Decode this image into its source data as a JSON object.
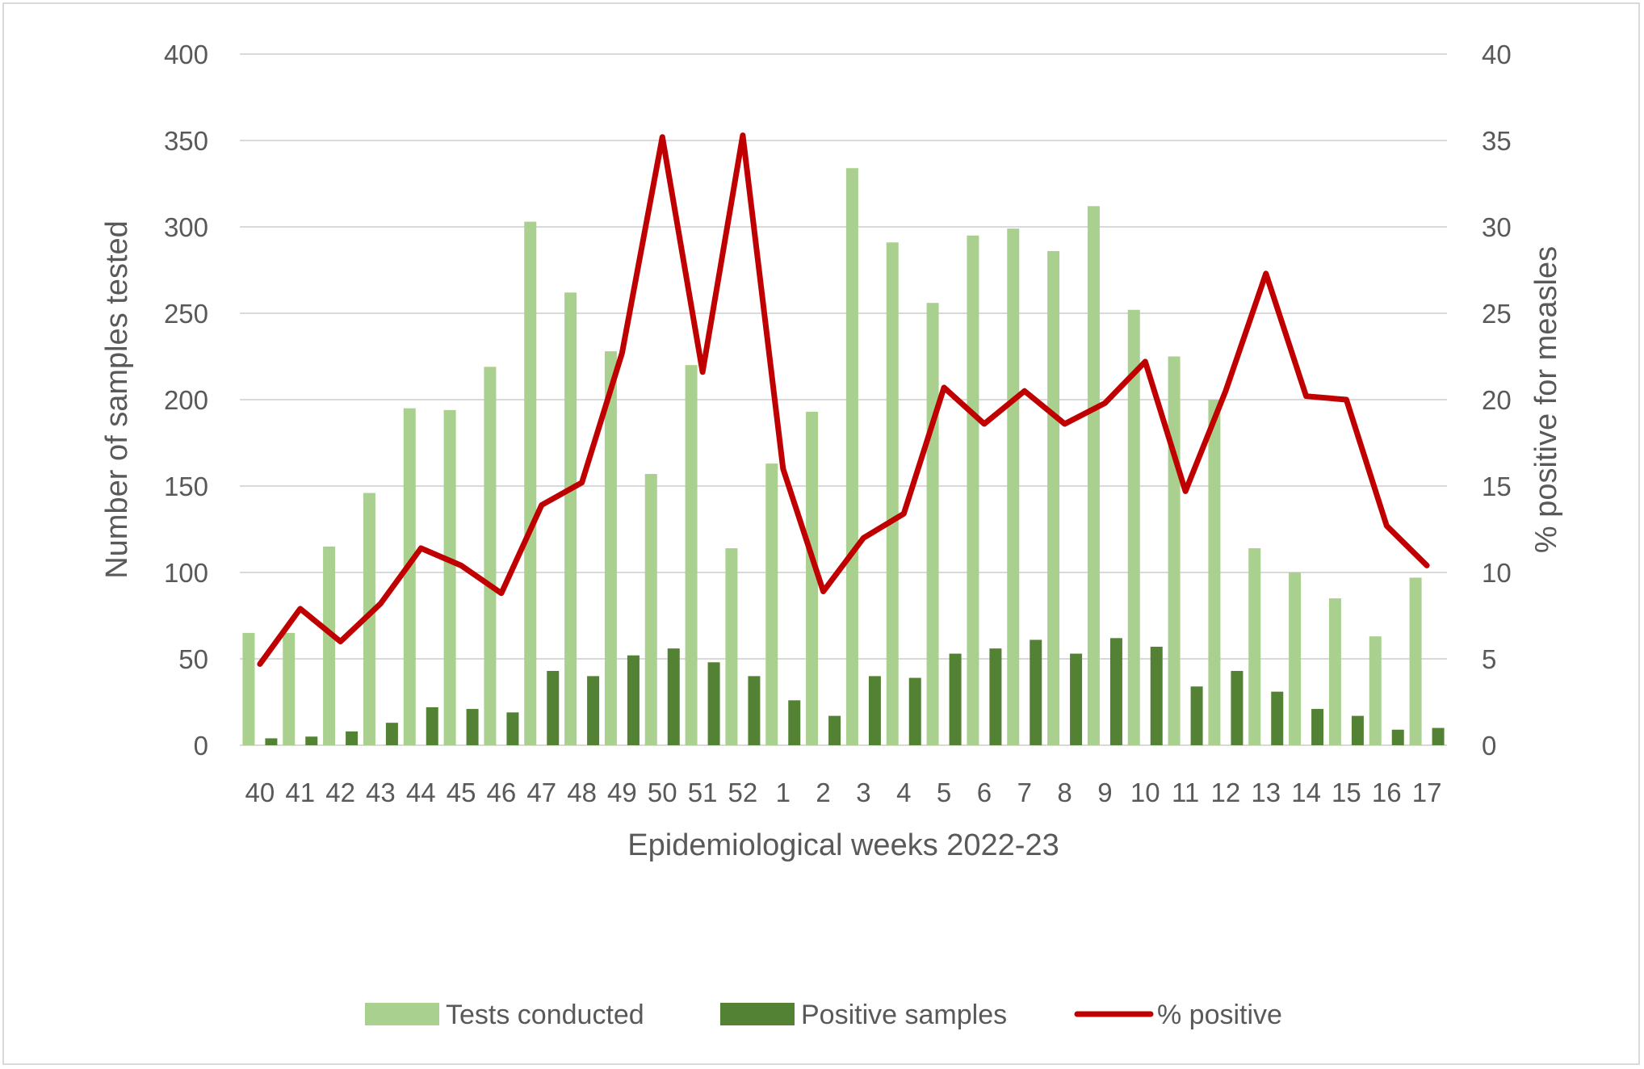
{
  "colors": {
    "tests": "#a9d08e",
    "positive": "#548235",
    "percent": "#c00000",
    "grid": "#d9d9d9",
    "text": "#595959"
  },
  "chart_data": {
    "type": "bar",
    "title": "",
    "xlabel": "Epidemiological weeks 2022-23",
    "ylabel": "Number of samples tested",
    "y2label": "% positive for measles",
    "ylim": [
      0,
      400
    ],
    "y2lim": [
      0,
      40
    ],
    "yticks": [
      "0",
      "50",
      "100",
      "150",
      "200",
      "250",
      "300",
      "350",
      "400"
    ],
    "y2ticks": [
      "0",
      "5",
      "10",
      "15",
      "20",
      "25",
      "30",
      "35",
      "40"
    ],
    "grid": true,
    "legend_position": "bottom",
    "categories": [
      "40",
      "41",
      "42",
      "43",
      "44",
      "45",
      "46",
      "47",
      "48",
      "49",
      "50",
      "51",
      "52",
      "1",
      "2",
      "3",
      "4",
      "5",
      "6",
      "7",
      "8",
      "9",
      "10",
      "11",
      "12",
      "13",
      "14",
      "15",
      "16",
      "17"
    ],
    "series": [
      {
        "name": "Tests conducted",
        "type": "bar",
        "axis": "left",
        "values": [
          65,
          65,
          115,
          146,
          195,
          194,
          219,
          303,
          262,
          228,
          157,
          220,
          114,
          163,
          193,
          334,
          291,
          256,
          295,
          299,
          286,
          312,
          252,
          225,
          200,
          114,
          100,
          85,
          63,
          97
        ]
      },
      {
        "name": "Positive samples",
        "type": "bar",
        "axis": "left",
        "values": [
          4,
          5,
          8,
          13,
          22,
          21,
          19,
          43,
          40,
          52,
          56,
          48,
          40,
          26,
          17,
          40,
          39,
          53,
          56,
          61,
          53,
          62,
          57,
          34,
          43,
          31,
          21,
          17,
          9,
          10
        ]
      },
      {
        "name": "% positive",
        "type": "line",
        "axis": "right",
        "values": [
          4.7,
          7.9,
          6.0,
          8.2,
          11.4,
          10.4,
          8.8,
          13.9,
          15.2,
          22.7,
          35.2,
          21.6,
          35.3,
          16.0,
          8.9,
          12.0,
          13.4,
          20.7,
          18.6,
          20.5,
          18.6,
          19.8,
          22.2,
          14.7,
          20.5,
          27.3,
          20.2,
          20.0,
          12.7,
          10.4
        ]
      }
    ]
  }
}
